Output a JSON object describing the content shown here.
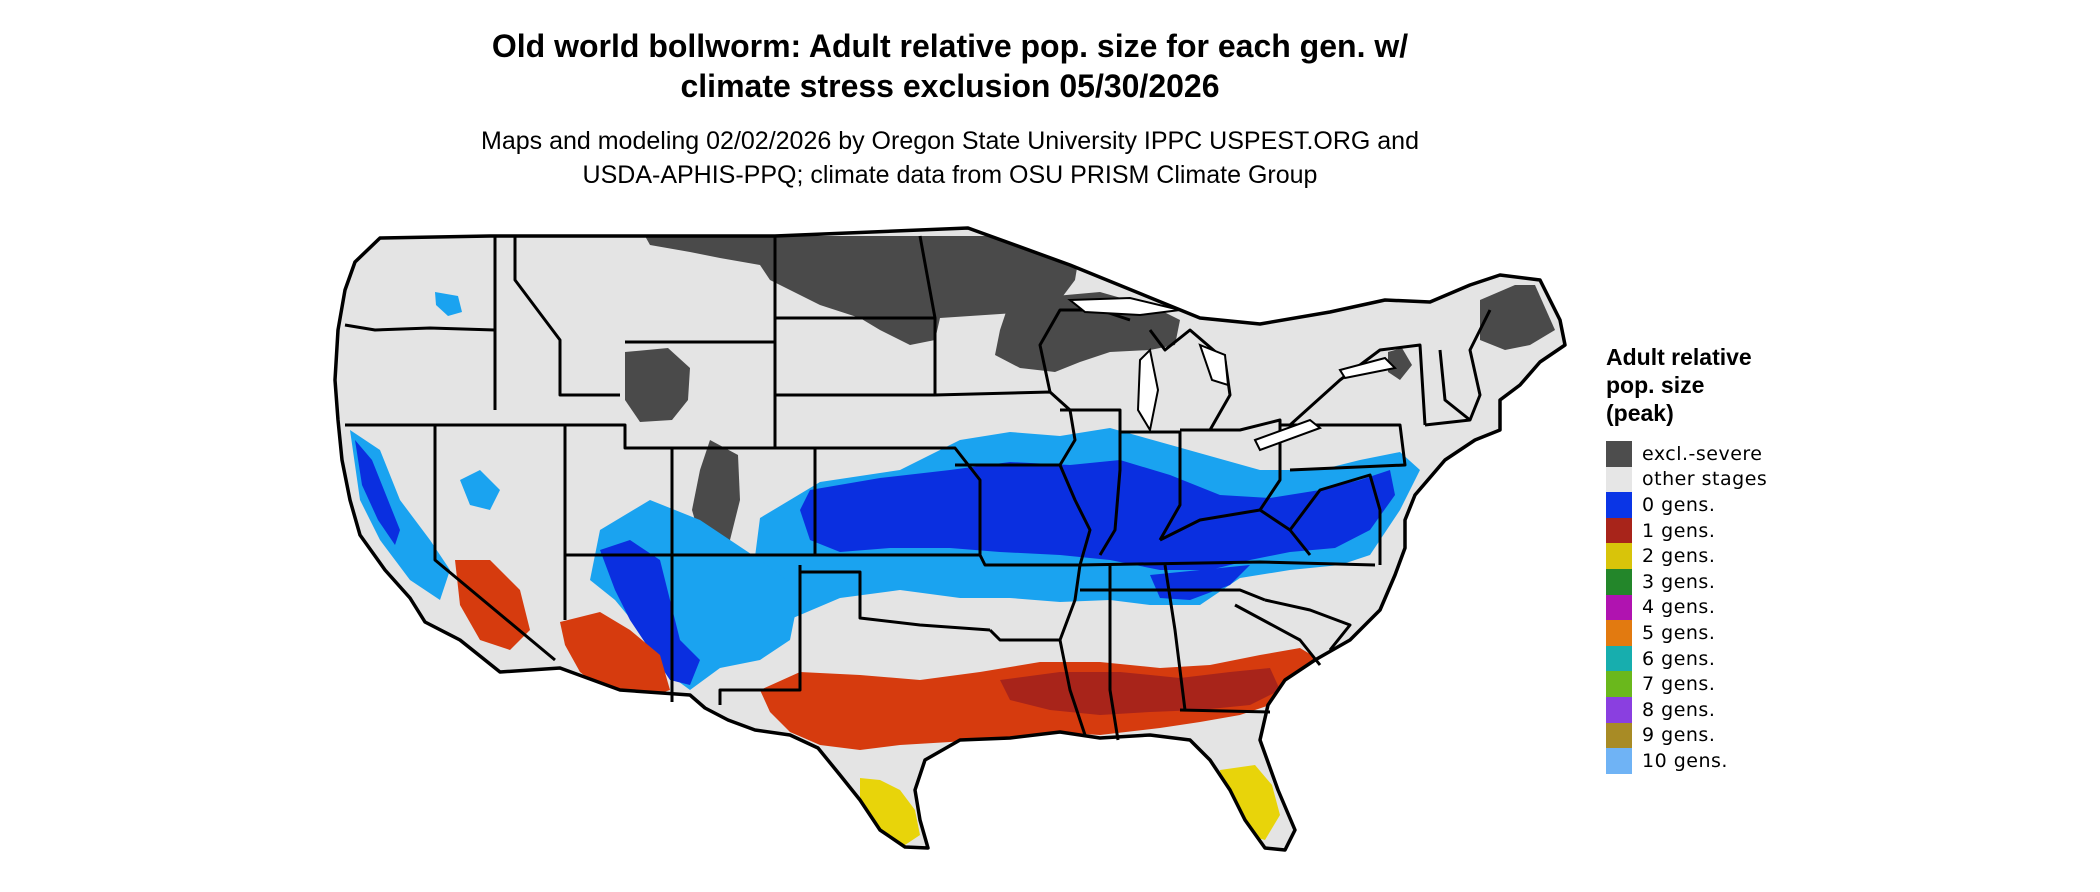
{
  "title": {
    "line1": "Old world bollworm: Adult relative pop. size for each gen. w/",
    "line2": "climate stress exclusion 05/30/2026"
  },
  "subtitle": {
    "line1": "Maps and modeling 02/02/2026 by Oregon State University IPPC USPEST.ORG and",
    "line2": "USDA-APHIS-PPQ; climate data from OSU PRISM Climate Group"
  },
  "map": {
    "region": "contiguous-united-states",
    "colors": {
      "land": "#e4e4e4",
      "excluded": "#4a4a4a",
      "gen0_light": "#1aa3f0",
      "gen0_dark": "#0a2fe0",
      "gen1": "#d63b0e",
      "gen1_dark": "#a8241a",
      "gen2": "#e8d40a",
      "gen7": "#55d655",
      "borders": "#000000"
    }
  },
  "legend": {
    "title_lines": [
      "Adult relative",
      "pop. size",
      "(peak)"
    ],
    "items": [
      {
        "label": "excl.-severe",
        "color": "#4d4d4d"
      },
      {
        "label": "other stages",
        "color": "#e6e6e6"
      },
      {
        "label": "0 gens.",
        "color": "#0a35e6"
      },
      {
        "label": "1 gens.",
        "color": "#a8241a"
      },
      {
        "label": "2 gens.",
        "color": "#d8c40a"
      },
      {
        "label": "3 gens.",
        "color": "#23862a"
      },
      {
        "label": "4 gens.",
        "color": "#b013b0"
      },
      {
        "label": "5 gens.",
        "color": "#e27a10"
      },
      {
        "label": "6 gens.",
        "color": "#17aeae"
      },
      {
        "label": "7 gens.",
        "color": "#6ab81c"
      },
      {
        "label": "8 gens.",
        "color": "#8a3fe0"
      },
      {
        "label": "9 gens.",
        "color": "#a88b25"
      },
      {
        "label": "10 gens.",
        "color": "#6fb3f5"
      }
    ]
  }
}
